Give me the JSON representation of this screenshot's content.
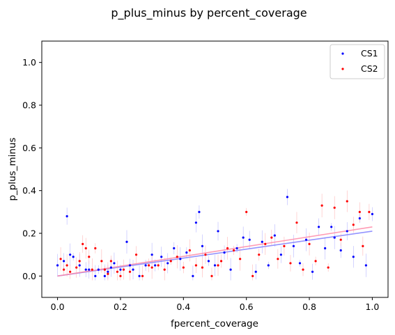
{
  "chart_data": {
    "type": "scatter",
    "title": "p_plus_minus by percent_coverage",
    "xlabel": "fpercent_coverage",
    "ylabel": "p_plus_minus",
    "xlim": [
      -0.05,
      1.05
    ],
    "ylim": [
      -0.1,
      1.1
    ],
    "xticks": [
      "0.0",
      "0.2",
      "0.4",
      "0.6",
      "0.8",
      "1.0"
    ],
    "xtick_values": [
      0.0,
      0.2,
      0.4,
      0.6,
      0.8,
      1.0
    ],
    "yticks": [
      "0.0",
      "0.2",
      "0.4",
      "0.6",
      "0.8",
      "1.0"
    ],
    "ytick_values": [
      0.0,
      0.2,
      0.4,
      0.6,
      0.8,
      1.0
    ],
    "legend_position": "top-right",
    "series": [
      {
        "name": "CS1",
        "color": "#0000ff",
        "errbar_color": "#9999ff",
        "fit": {
          "x": [
            0.0,
            1.0
          ],
          "y": [
            0.0,
            0.21
          ],
          "color": "#8080ff"
        },
        "x": [
          0.0,
          0.02,
          0.03,
          0.04,
          0.05,
          0.07,
          0.09,
          0.1,
          0.12,
          0.13,
          0.15,
          0.16,
          0.17,
          0.18,
          0.2,
          0.22,
          0.23,
          0.24,
          0.26,
          0.28,
          0.3,
          0.31,
          0.33,
          0.35,
          0.37,
          0.39,
          0.41,
          0.43,
          0.44,
          0.45,
          0.46,
          0.48,
          0.5,
          0.51,
          0.53,
          0.55,
          0.57,
          0.59,
          0.61,
          0.63,
          0.65,
          0.67,
          0.69,
          0.71,
          0.73,
          0.75,
          0.77,
          0.79,
          0.81,
          0.83,
          0.85,
          0.87,
          0.88,
          0.9,
          0.92,
          0.94,
          0.96,
          0.98,
          1.0
        ],
        "y": [
          0.05,
          0.07,
          0.28,
          0.1,
          0.09,
          0.05,
          0.03,
          0.03,
          0.0,
          0.03,
          0.0,
          0.02,
          0.04,
          0.06,
          0.03,
          0.16,
          0.05,
          0.03,
          0.0,
          0.05,
          0.1,
          0.05,
          0.09,
          0.06,
          0.13,
          0.08,
          0.11,
          0.0,
          0.25,
          0.3,
          0.14,
          0.07,
          0.05,
          0.21,
          0.11,
          0.03,
          0.13,
          0.18,
          0.17,
          0.02,
          0.16,
          0.05,
          0.19,
          0.1,
          0.37,
          0.14,
          0.06,
          0.17,
          0.02,
          0.23,
          0.13,
          0.23,
          0.18,
          0.12,
          0.21,
          0.09,
          0.27,
          0.05,
          0.29
        ]
      },
      {
        "name": "CS2",
        "color": "#ff0000",
        "errbar_color": "#ff9999",
        "fit": {
          "x": [
            0.0,
            1.0
          ],
          "y": [
            0.0,
            0.23
          ],
          "color": "#ff8aa8"
        },
        "x": [
          0.01,
          0.02,
          0.03,
          0.04,
          0.06,
          0.07,
          0.08,
          0.09,
          0.1,
          0.11,
          0.12,
          0.14,
          0.15,
          0.16,
          0.17,
          0.19,
          0.2,
          0.21,
          0.23,
          0.25,
          0.27,
          0.29,
          0.3,
          0.32,
          0.34,
          0.36,
          0.38,
          0.4,
          0.42,
          0.44,
          0.46,
          0.47,
          0.49,
          0.51,
          0.52,
          0.54,
          0.56,
          0.58,
          0.6,
          0.62,
          0.64,
          0.66,
          0.68,
          0.7,
          0.72,
          0.74,
          0.76,
          0.78,
          0.8,
          0.82,
          0.84,
          0.86,
          0.88,
          0.9,
          0.92,
          0.94,
          0.96,
          0.97,
          0.99
        ],
        "y": [
          0.08,
          0.03,
          0.05,
          0.02,
          0.04,
          0.07,
          0.15,
          0.13,
          0.09,
          0.03,
          0.13,
          0.07,
          0.03,
          0.01,
          0.07,
          0.02,
          0.0,
          0.03,
          0.02,
          0.1,
          0.0,
          0.05,
          0.04,
          0.05,
          0.03,
          0.07,
          0.09,
          0.04,
          0.12,
          0.05,
          0.04,
          0.1,
          0.0,
          0.05,
          0.07,
          0.13,
          0.12,
          0.08,
          0.3,
          0.0,
          0.1,
          0.15,
          0.18,
          0.08,
          0.14,
          0.06,
          0.25,
          0.03,
          0.15,
          0.07,
          0.33,
          0.04,
          0.32,
          0.17,
          0.35,
          0.24,
          0.3,
          0.14,
          0.3
        ]
      }
    ]
  }
}
